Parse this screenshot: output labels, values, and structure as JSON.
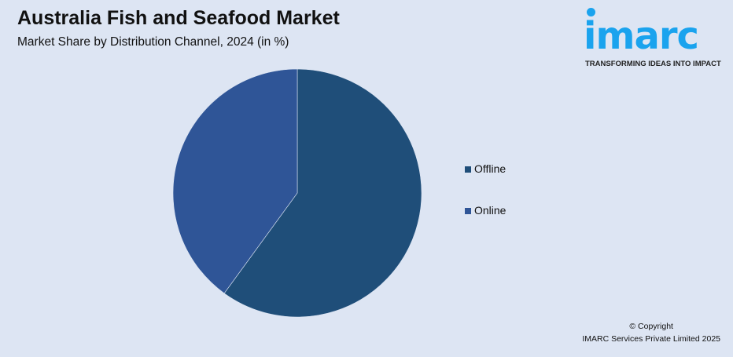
{
  "header": {
    "title": "Australia Fish and Seafood Market",
    "subtitle": "Market Share by Distribution Channel, 2024 (in %)"
  },
  "logo": {
    "word": "imarc",
    "tagline": "TRANSFORMING IDEAS INTO IMPACT",
    "color": "#1aa3ee"
  },
  "chart_data": {
    "type": "pie",
    "title": "Australia Fish and Seafood Market",
    "subtitle": "Market Share by Distribution Channel, 2024 (in %)",
    "categories": [
      "Offline",
      "Online"
    ],
    "values": [
      60,
      40
    ],
    "colors": [
      "#1f4e79",
      "#2f5597"
    ],
    "start_angle": "12 o'clock, clockwise",
    "legend_position": "right"
  },
  "footer": {
    "copyright": "© Copyright",
    "company": "IMARC Services Private Limited 2025"
  }
}
